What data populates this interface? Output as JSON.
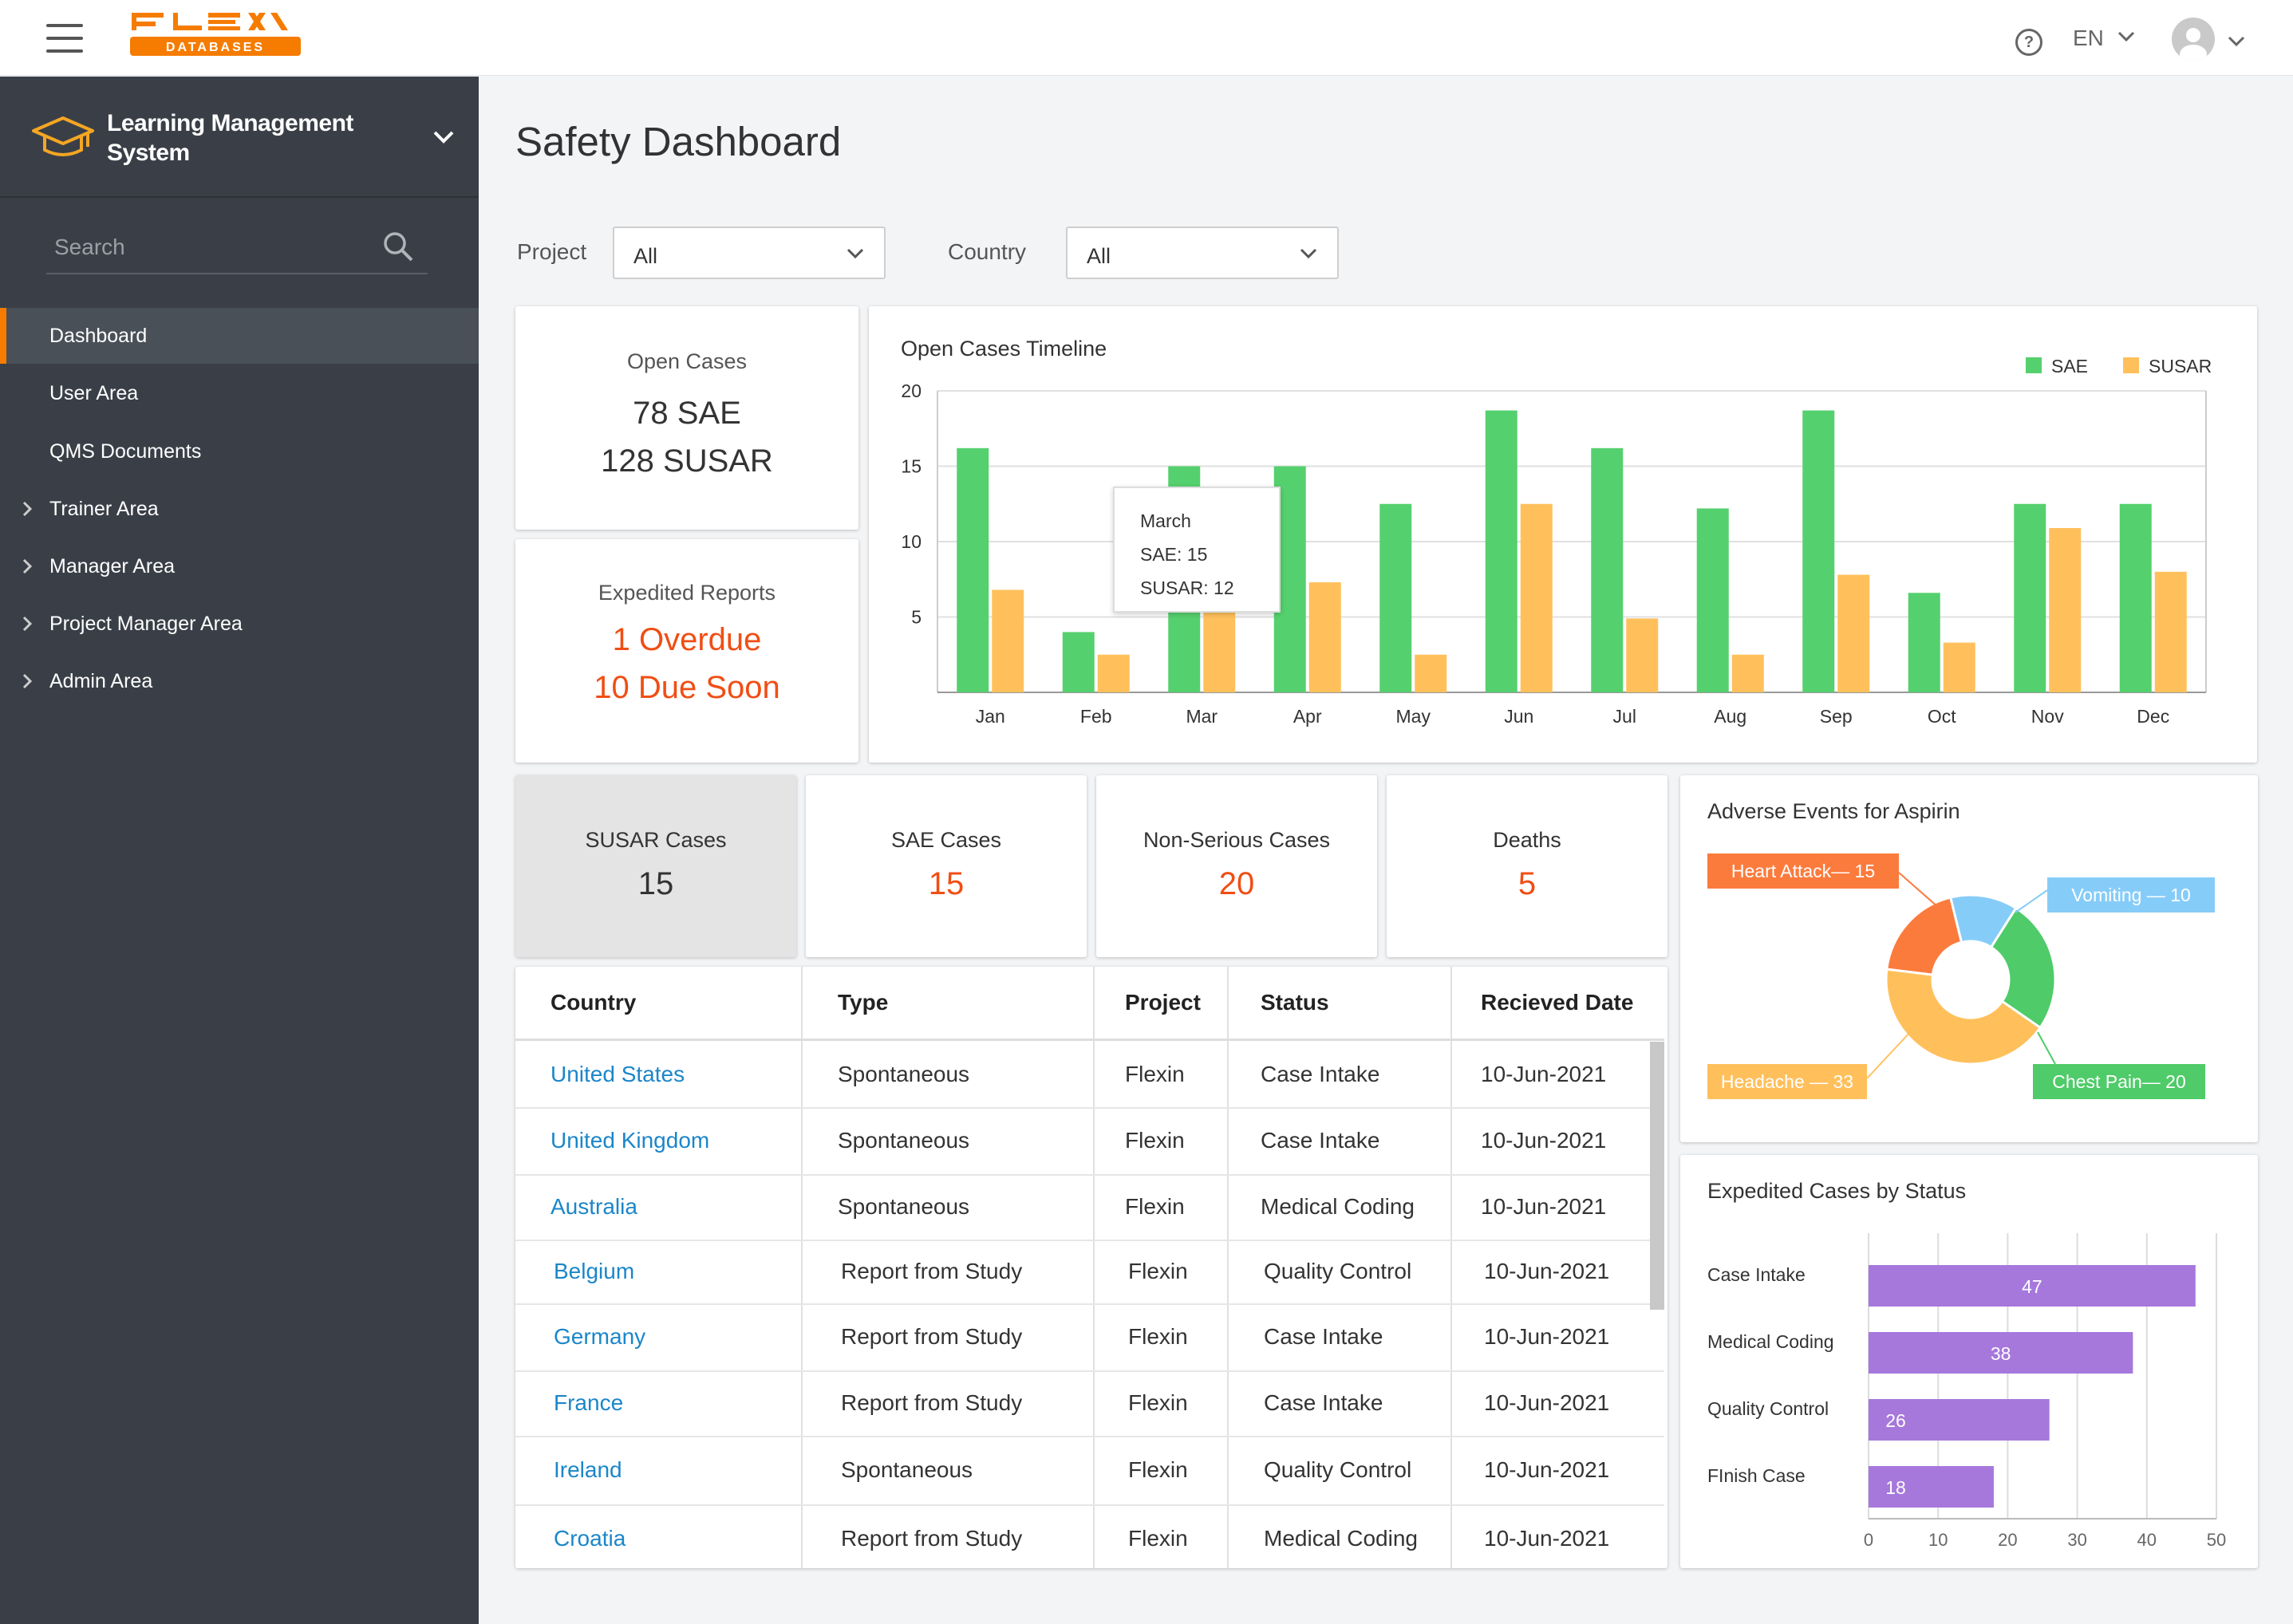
{
  "header": {
    "logo_text": "FLEX",
    "logo_subtext": "DATABASES",
    "help_icon": "question-circle-icon",
    "language": "EN"
  },
  "sidebar": {
    "app_title": "Learning Management System",
    "search_placeholder": "Search",
    "items": [
      {
        "label": "Dashboard",
        "active": true,
        "expandable": false
      },
      {
        "label": "User Area",
        "expandable": false
      },
      {
        "label": "QMS Documents",
        "expandable": false
      },
      {
        "label": "Trainer Area",
        "expandable": true
      },
      {
        "label": "Manager Area",
        "expandable": true
      },
      {
        "label": "Project Manager Area",
        "expandable": true
      },
      {
        "label": "Admin Area",
        "expandable": true
      }
    ]
  },
  "page": {
    "title": "Safety Dashboard",
    "filters": {
      "project_label": "Project",
      "project_value": "All",
      "country_label": "Country",
      "country_value": "All"
    }
  },
  "open_cases": {
    "title": "Open Cases",
    "line1": "78 SAE",
    "line2": "128 SUSAR"
  },
  "expedited_reports": {
    "title": "Expedited Reports",
    "line1": "1 Overdue",
    "line2": "10 Due Soon"
  },
  "stat_tiles": [
    {
      "label": "SUSAR Cases",
      "value": "15"
    },
    {
      "label": "SAE Cases",
      "value": "15"
    },
    {
      "label": "Non-Serious Cases",
      "value": "20"
    },
    {
      "label": "Deaths",
      "value": "5"
    }
  ],
  "table": {
    "headers": [
      "Country",
      "Type",
      "Project",
      "Status",
      "Recieved Date"
    ],
    "rows": [
      [
        "United States",
        "Spontaneous",
        "Flexin",
        "Case Intake",
        "10-Jun-2021"
      ],
      [
        "United Kingdom",
        "Spontaneous",
        "Flexin",
        "Case Intake",
        "10-Jun-2021"
      ],
      [
        "Australia",
        "Spontaneous",
        "Flexin",
        "Medical Coding",
        "10-Jun-2021"
      ],
      [
        "Belgium",
        "Report from Study",
        "Flexin",
        "Quality Control",
        "10-Jun-2021"
      ],
      [
        "Germany",
        "Report from Study",
        "Flexin",
        "Case Intake",
        "10-Jun-2021"
      ],
      [
        "France",
        "Report from Study",
        "Flexin",
        "Case Intake",
        "10-Jun-2021"
      ],
      [
        "Ireland",
        "Spontaneous",
        "Flexin",
        "Quality Control",
        "10-Jun-2021"
      ],
      [
        "Croatia",
        "Report from Study",
        "Flexin",
        "Medical Coding",
        "10-Jun-2021"
      ]
    ]
  },
  "colors": {
    "sae": "#55d06e",
    "susar": "#ffc05c",
    "accent": "#f57c00",
    "link": "#1b86c9",
    "alert": "#f04e14",
    "bar_purple": "#a678dc"
  },
  "chart_data": [
    {
      "type": "bar",
      "title": "Open Cases Timeline",
      "categories": [
        "Jan",
        "Feb",
        "Mar",
        "Apr",
        "May",
        "Jun",
        "Jul",
        "Aug",
        "Sep",
        "Oct",
        "Nov",
        "Dec"
      ],
      "series": [
        {
          "name": "SAE",
          "values": [
            16.2,
            4,
            15,
            15,
            12.5,
            18.7,
            16.2,
            12.2,
            18.7,
            6.6,
            12.5,
            12.5
          ]
        },
        {
          "name": "SUSAR",
          "values": [
            6.8,
            2.5,
            12,
            7.3,
            2.5,
            12.5,
            4.9,
            2.5,
            7.8,
            3.3,
            10.9,
            8
          ]
        }
      ],
      "ylim": [
        0,
        20
      ],
      "yticks": [
        5,
        10,
        15,
        20
      ],
      "legend": "top-right",
      "grid": true,
      "tooltip": {
        "title": "March",
        "line1": "SAE: 15",
        "line2": "SUSAR:  12"
      }
    },
    {
      "type": "pie",
      "title": "Adverse Events for Aspirin",
      "slices": [
        {
          "label": "Heart Attack— 15",
          "value": 15,
          "color": "#fb7b3d"
        },
        {
          "label": "Vomiting — 10",
          "value": 10,
          "color": "#86ccf8"
        },
        {
          "label": "Chest Pain— 20",
          "value": 20,
          "color": "#4fcb69"
        },
        {
          "label": "Headache — 33",
          "value": 33,
          "color": "#ffc05c"
        }
      ]
    },
    {
      "type": "bar",
      "orientation": "horizontal",
      "title": "Expedited Cases by Status",
      "categories": [
        "Case Intake",
        "Medical Coding",
        "Quality Control",
        "FInish Case"
      ],
      "values": [
        47,
        38,
        26,
        18
      ],
      "xlim": [
        0,
        50
      ],
      "xticks": [
        0,
        10,
        20,
        30,
        40,
        50
      ],
      "grid": true
    }
  ]
}
